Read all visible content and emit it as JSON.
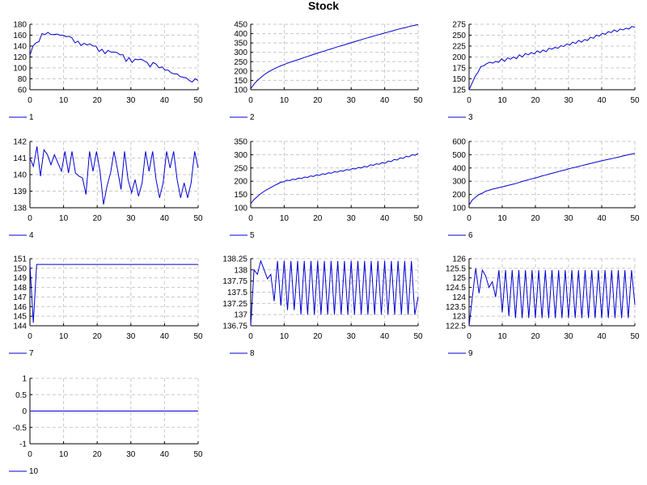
{
  "title": "Stock",
  "line_color": "#0000d0",
  "chart_data": [
    {
      "type": "line",
      "legend": "1",
      "ylim": [
        60,
        180
      ],
      "xlim": [
        0,
        50
      ],
      "yticks": [
        60,
        80,
        100,
        120,
        140,
        160,
        180
      ],
      "xticks": [
        0,
        10,
        20,
        30,
        40,
        50
      ],
      "values": [
        123,
        140,
        146,
        148,
        163,
        161,
        165,
        161,
        161,
        162,
        160,
        160,
        157,
        158,
        155,
        146,
        149,
        141,
        145,
        142,
        144,
        140,
        140,
        130,
        134,
        126,
        132,
        129,
        129,
        128,
        124,
        124,
        112,
        119,
        110,
        116,
        115,
        116,
        113,
        110,
        102,
        110,
        107,
        100,
        102,
        96,
        96,
        91,
        89,
        89,
        84,
        83,
        82,
        77,
        74,
        80,
        77
      ]
    },
    {
      "type": "line",
      "legend": "2",
      "ylim": [
        100,
        450
      ],
      "xlim": [
        0,
        50
      ],
      "yticks": [
        100,
        150,
        200,
        250,
        300,
        350,
        400,
        450
      ],
      "xticks": [
        0,
        10,
        20,
        30,
        40,
        50
      ],
      "values": [
        105,
        130,
        150,
        165,
        180,
        192,
        202,
        212,
        220,
        228,
        235,
        242,
        248,
        254,
        260,
        266,
        272,
        278,
        284,
        290,
        296,
        302,
        307,
        313,
        318,
        324,
        330,
        335,
        340,
        346,
        351,
        357,
        362,
        367,
        373,
        378,
        383,
        388,
        393,
        398,
        403,
        408,
        413,
        418,
        423,
        428,
        431,
        436,
        441,
        445,
        448
      ]
    },
    {
      "type": "line",
      "legend": "3",
      "ylim": [
        125,
        275
      ],
      "xlim": [
        0,
        50
      ],
      "yticks": [
        125,
        150,
        175,
        200,
        225,
        250,
        275
      ],
      "xticks": [
        0,
        10,
        20,
        30,
        40,
        50
      ],
      "values": [
        125,
        140,
        155,
        165,
        178,
        180,
        185,
        188,
        186,
        190,
        188,
        196,
        190,
        198,
        195,
        200,
        196,
        205,
        200,
        208,
        205,
        210,
        207,
        214,
        210,
        216,
        212,
        220,
        218,
        222,
        220,
        226,
        224,
        230,
        227,
        234,
        231,
        238,
        234,
        240,
        238,
        245,
        243,
        250,
        248,
        254,
        252,
        258,
        256,
        262,
        258,
        264,
        262,
        266,
        264,
        270,
        268
      ]
    },
    {
      "type": "line",
      "legend": "4",
      "ylim": [
        138,
        142
      ],
      "xlim": [
        0,
        50
      ],
      "yticks": [
        138,
        139,
        140,
        141,
        142
      ],
      "xticks": [
        0,
        10,
        20,
        30,
        40,
        50
      ],
      "values": [
        141,
        140.5,
        141.7,
        139.9,
        141.5,
        141.2,
        140.6,
        141.2,
        140.7,
        140.2,
        141.4,
        140.1,
        141.4,
        140.1,
        139.9,
        139.8,
        138.8,
        141.4,
        140.2,
        141.4,
        140.2,
        138.2,
        139.3,
        140.1,
        141.4,
        140.3,
        139.1,
        141.4,
        139.7,
        138.9,
        139.7,
        138.7,
        139.5,
        141.4,
        140.2,
        141.4,
        139.7,
        138.6,
        139.5,
        141.4,
        140.4,
        141.4,
        139.7,
        138.6,
        139.5,
        138.6,
        139.5,
        141.4,
        140.4
      ]
    },
    {
      "type": "line",
      "legend": "5",
      "ylim": [
        100,
        350
      ],
      "xlim": [
        0,
        50
      ],
      "yticks": [
        100,
        150,
        200,
        250,
        300,
        350
      ],
      "xticks": [
        0,
        10,
        20,
        30,
        40,
        50
      ],
      "values": [
        115,
        130,
        140,
        150,
        158,
        166,
        172,
        178,
        184,
        190,
        196,
        198,
        204,
        202,
        208,
        206,
        212,
        210,
        216,
        214,
        220,
        218,
        224,
        222,
        228,
        226,
        232,
        230,
        236,
        234,
        240,
        238,
        244,
        242,
        248,
        246,
        252,
        250,
        256,
        254,
        262,
        260,
        266,
        264,
        270,
        268,
        276,
        274,
        282,
        280,
        288,
        286,
        294,
        292,
        300,
        298,
        305
      ]
    },
    {
      "type": "line",
      "legend": "6",
      "ylim": [
        100,
        600
      ],
      "xlim": [
        0,
        50
      ],
      "yticks": [
        100,
        200,
        300,
        400,
        500,
        600
      ],
      "xticks": [
        0,
        10,
        20,
        30,
        40,
        50
      ],
      "values": [
        120,
        160,
        180,
        200,
        210,
        225,
        232,
        240,
        246,
        252,
        258,
        264,
        270,
        276,
        282,
        290,
        298,
        305,
        312,
        318,
        325,
        332,
        340,
        346,
        353,
        360,
        366,
        373,
        380,
        386,
        393,
        400,
        405,
        411,
        418,
        424,
        430,
        436,
        442,
        448,
        454,
        460,
        465,
        470,
        476,
        482,
        488,
        494,
        500,
        505,
        510
      ]
    },
    {
      "type": "line",
      "legend": "7",
      "ylim": [
        144,
        151
      ],
      "xlim": [
        0,
        50
      ],
      "yticks": [
        144,
        145,
        146,
        147,
        148,
        149,
        150,
        151
      ],
      "xticks": [
        0,
        10,
        20,
        30,
        40,
        50
      ],
      "values": [
        150.4,
        144.3,
        150.4,
        150.4,
        150.4,
        150.4,
        150.4,
        150.4,
        150.4,
        150.4,
        150.4,
        150.4,
        150.4,
        150.4,
        150.4,
        150.4,
        150.4,
        150.4,
        150.4,
        150.4,
        150.4,
        150.4,
        150.4,
        150.4,
        150.4,
        150.4,
        150.4,
        150.4,
        150.4,
        150.4,
        150.4,
        150.4,
        150.4,
        150.4,
        150.4,
        150.4,
        150.4,
        150.4,
        150.4,
        150.4,
        150.4,
        150.4,
        150.4,
        150.4,
        150.4,
        150.4,
        150.4,
        150.4,
        150.4,
        150.4,
        150.4
      ]
    },
    {
      "type": "line",
      "legend": "8",
      "ylim": [
        136.75,
        138.25
      ],
      "xlim": [
        0,
        50
      ],
      "yticks": [
        136.75,
        137,
        137.25,
        137.5,
        137.75,
        138,
        138.25
      ],
      "xticks": [
        0,
        10,
        20,
        30,
        40,
        50
      ],
      "values": [
        136.75,
        138,
        137.9,
        138.2,
        138,
        137.8,
        137.9,
        137.3,
        138.2,
        137.2,
        138.2,
        137.1,
        138.2,
        137.1,
        138.2,
        137,
        138.2,
        137,
        138.2,
        137,
        138.2,
        137,
        138.2,
        137,
        138.2,
        137,
        138.2,
        137,
        138.2,
        137,
        138.2,
        137,
        138.2,
        137,
        138.2,
        137,
        138.2,
        137,
        138.2,
        137,
        138.2,
        137,
        138.2,
        137,
        138.2,
        137,
        138.2,
        137,
        138.2,
        137,
        137.4
      ]
    },
    {
      "type": "line",
      "legend": "9",
      "ylim": [
        122.5,
        126
      ],
      "xlim": [
        0,
        50
      ],
      "yticks": [
        122.5,
        123,
        123.5,
        124,
        124.5,
        125,
        125.5,
        126
      ],
      "xticks": [
        0,
        10,
        20,
        30,
        40,
        50
      ],
      "values": [
        122.5,
        124,
        125.5,
        124.2,
        125.4,
        125.1,
        124.5,
        124.8,
        124,
        125.4,
        123.2,
        125.4,
        123,
        125.4,
        122.9,
        125.4,
        122.9,
        125.4,
        122.9,
        125.4,
        122.9,
        125.4,
        122.9,
        125.4,
        122.9,
        125.4,
        122.9,
        125.4,
        122.9,
        125.4,
        122.9,
        125.4,
        122.9,
        125.4,
        122.9,
        125.4,
        122.9,
        125.4,
        122.9,
        125.4,
        122.9,
        125.4,
        122.9,
        125.4,
        122.9,
        125.4,
        122.9,
        125.4,
        122.9,
        125.4,
        123.6
      ]
    },
    {
      "type": "line",
      "legend": "10",
      "ylim": [
        -1,
        1
      ],
      "xlim": [
        0,
        50
      ],
      "yticks": [
        -1,
        -0.5,
        0,
        0.5,
        1
      ],
      "xticks": [
        0,
        10,
        20,
        30,
        40,
        50
      ],
      "values": [
        0,
        0,
        0,
        0,
        0,
        0,
        0,
        0,
        0,
        0,
        0,
        0,
        0,
        0,
        0,
        0,
        0,
        0,
        0,
        0,
        0,
        0,
        0,
        0,
        0,
        0,
        0,
        0,
        0,
        0,
        0,
        0,
        0,
        0,
        0,
        0,
        0,
        0,
        0,
        0,
        0,
        0,
        0,
        0,
        0,
        0,
        0,
        0,
        0,
        0,
        0
      ]
    }
  ]
}
